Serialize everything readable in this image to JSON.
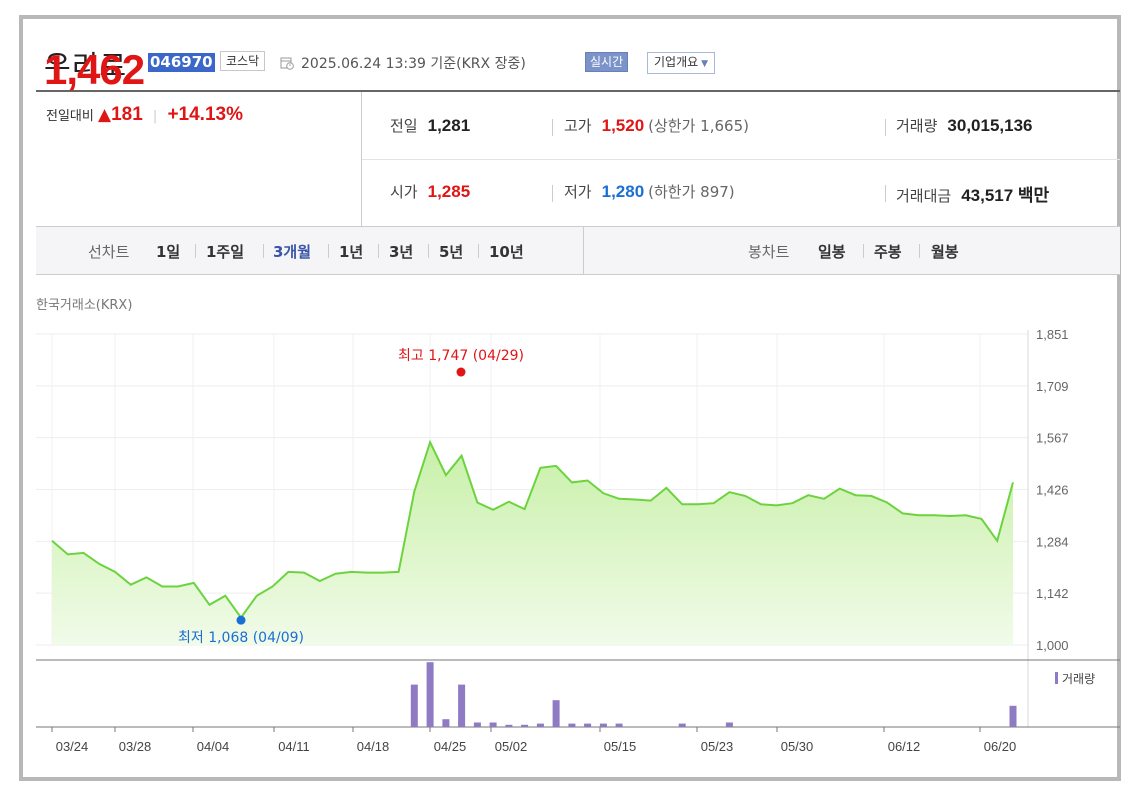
{
  "header": {
    "stock_name": "우리로",
    "stock_code": "046970",
    "market": "코스닥",
    "timestamp": "2025.06.24 13:39 기준(KRX 장중)",
    "realtime_label": "실시간",
    "company_overview_label": "기업개요"
  },
  "price": {
    "current": "1,462",
    "change_label": "전일대비",
    "change_amount": "181",
    "change_percent": "+14.13%",
    "change_direction": "up"
  },
  "quote": {
    "prev_close_label": "전일",
    "prev_close": "1,281",
    "high_label": "고가",
    "high": "1,520",
    "upper_limit": "(상한가 1,665)",
    "volume_label": "거래량",
    "volume": "30,015,136",
    "open_label": "시가",
    "open": "1,285",
    "low_label": "저가",
    "low": "1,280",
    "lower_limit": "(하한가 897)",
    "trade_value_label": "거래대금",
    "trade_value": "43,517 백만"
  },
  "tabs": {
    "line_chart_label": "선차트",
    "periods": [
      "1일",
      "1주일",
      "3개월",
      "1년",
      "3년",
      "5년",
      "10년"
    ],
    "active_period": "3개월",
    "candle_chart_label": "봉차트",
    "candles": [
      "일봉",
      "주봉",
      "월봉"
    ]
  },
  "chart": {
    "exchange_label": "한국거래소(KRX)",
    "high_annotation": "최고 1,747 (04/29)",
    "low_annotation": "최저 1,068 (04/09)",
    "volume_legend": "거래량",
    "colors": {
      "line": "#6cd33f",
      "fill_top": "#c8f0a8",
      "fill_bottom": "#f1fbe9",
      "volume": "#8f7ac4",
      "high": "#e01515",
      "low": "#1a6fd4"
    }
  },
  "chart_data": {
    "type": "area",
    "x_tick_labels": [
      "03/24",
      "03/28",
      "04/04",
      "04/11",
      "04/18",
      "04/25",
      "05/02",
      "05/15",
      "05/23",
      "05/30",
      "06/12",
      "06/20"
    ],
    "y_tick_labels": [
      "1,851",
      "1,709",
      "1,567",
      "1,426",
      "1,284",
      "1,142",
      "1,000"
    ],
    "ylim": [
      1000,
      1851
    ],
    "series": [
      {
        "values": [
          1285,
          1248,
          1252,
          1222,
          1200,
          1165,
          1185,
          1160,
          1160,
          1170,
          1110,
          1135,
          1075,
          1135,
          1160,
          1200,
          1198,
          1175,
          1195,
          1200,
          1198,
          1198,
          1200,
          1420,
          1555,
          1465,
          1518,
          1390,
          1370,
          1392,
          1372,
          1485,
          1490,
          1445,
          1450,
          1415,
          1400,
          1398,
          1395,
          1430,
          1385,
          1385,
          1388,
          1418,
          1408,
          1385,
          1382,
          1388,
          1410,
          1400,
          1428,
          1410,
          1408,
          1390,
          1360,
          1355,
          1355,
          1353,
          1355,
          1345,
          1285,
          1445
        ]
      }
    ],
    "volume": [
      0,
      0,
      0,
      0,
      0,
      0,
      0,
      0,
      0,
      0,
      0,
      0,
      0,
      0,
      0,
      0,
      0,
      0,
      0,
      0,
      0,
      0,
      0,
      3.8,
      5.8,
      0.7,
      3.8,
      0.4,
      0.4,
      0.2,
      0.2,
      0.3,
      2.4,
      0.3,
      0.3,
      0.3,
      0.3,
      0,
      0,
      0,
      0.3,
      0,
      0,
      0.4,
      0,
      0,
      0,
      0,
      0,
      0,
      0,
      0,
      0,
      0,
      0,
      0,
      0,
      0,
      0,
      0,
      0,
      1.9
    ],
    "annotations": [
      {
        "label": "최고 1,747 (04/29)",
        "y": 1747
      },
      {
        "label": "최저 1,068 (04/09)",
        "y": 1068
      }
    ]
  }
}
